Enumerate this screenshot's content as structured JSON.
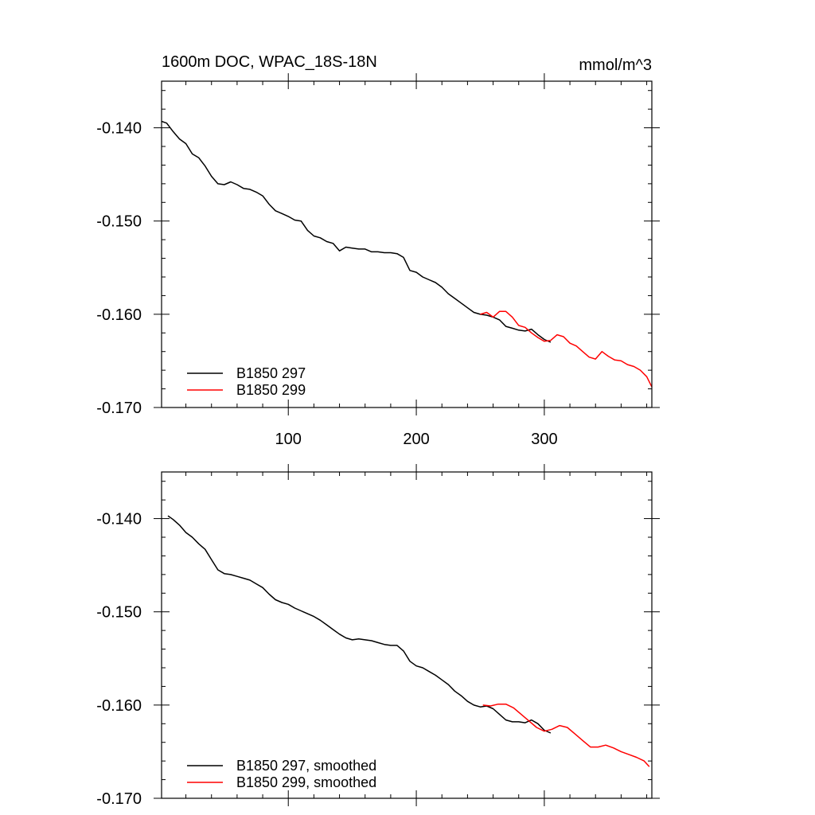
{
  "figure": {
    "title": "1600m DOC, WPAC_18S-18N",
    "units": "mmol/m^3"
  },
  "chart_data": [
    {
      "type": "line",
      "title": "1600m DOC, WPAC_18S-18N",
      "units_label": "mmol/m^3",
      "xlabel": "",
      "ylabel": "",
      "xlim": [
        1,
        384
      ],
      "ylim": [
        -0.17,
        -0.135
      ],
      "x_ticks": [
        100,
        200,
        300
      ],
      "y_ticks": [
        -0.14,
        -0.15,
        -0.16,
        -0.17
      ],
      "x_tick_labels": [
        "100",
        "200",
        "300"
      ],
      "y_tick_labels": [
        "-0.140",
        "-0.150",
        "-0.160",
        "-0.170"
      ],
      "grid": false,
      "legend_placement": "bottom-left",
      "series": [
        {
          "name": "B1850 297",
          "color": "#000000",
          "x": [
            1,
            5,
            10,
            15,
            20,
            25,
            30,
            35,
            40,
            45,
            50,
            55,
            60,
            65,
            70,
            75,
            80,
            85,
            90,
            95,
            100,
            105,
            110,
            115,
            120,
            125,
            130,
            135,
            140,
            145,
            150,
            155,
            160,
            165,
            170,
            175,
            180,
            185,
            190,
            195,
            200,
            205,
            210,
            215,
            220,
            225,
            230,
            235,
            240,
            245,
            250,
            255,
            260,
            265,
            270,
            275,
            280,
            285,
            290,
            295,
            300,
            305
          ],
          "y": [
            -0.1393,
            -0.1395,
            -0.1404,
            -0.1412,
            -0.1417,
            -0.1428,
            -0.1432,
            -0.1441,
            -0.1452,
            -0.146,
            -0.1461,
            -0.1458,
            -0.1461,
            -0.1465,
            -0.1466,
            -0.1469,
            -0.1473,
            -0.1482,
            -0.1489,
            -0.1492,
            -0.1495,
            -0.1499,
            -0.15,
            -0.151,
            -0.1516,
            -0.1518,
            -0.1522,
            -0.1524,
            -0.1532,
            -0.1528,
            -0.1529,
            -0.153,
            -0.153,
            -0.1533,
            -0.1533,
            -0.1534,
            -0.1534,
            -0.1535,
            -0.1539,
            -0.1553,
            -0.1555,
            -0.156,
            -0.1563,
            -0.1566,
            -0.1571,
            -0.1578,
            -0.1583,
            -0.1588,
            -0.1593,
            -0.1598,
            -0.16,
            -0.1601,
            -0.1603,
            -0.1606,
            -0.1613,
            -0.1615,
            -0.1617,
            -0.1618,
            -0.1616,
            -0.1622,
            -0.1627,
            -0.163
          ]
        },
        {
          "name": "B1850 299",
          "color": "#ff0000",
          "x": [
            250,
            255,
            260,
            265,
            270,
            275,
            280,
            285,
            290,
            295,
            300,
            305,
            310,
            315,
            320,
            325,
            330,
            335,
            340,
            345,
            350,
            355,
            360,
            365,
            370,
            375,
            380,
            384
          ],
          "y": [
            -0.16,
            -0.1598,
            -0.1603,
            -0.1597,
            -0.1597,
            -0.1603,
            -0.1612,
            -0.1614,
            -0.162,
            -0.1625,
            -0.1629,
            -0.1628,
            -0.1622,
            -0.1624,
            -0.1631,
            -0.1634,
            -0.164,
            -0.1646,
            -0.1648,
            -0.164,
            -0.1645,
            -0.1649,
            -0.165,
            -0.1654,
            -0.1656,
            -0.166,
            -0.1667,
            -0.1678
          ]
        }
      ]
    },
    {
      "type": "line",
      "title": "",
      "xlabel": "",
      "ylabel": "",
      "xlim": [
        1,
        384
      ],
      "ylim": [
        -0.17,
        -0.135
      ],
      "x_ticks": [
        100,
        200,
        300
      ],
      "y_ticks": [
        -0.14,
        -0.15,
        -0.16,
        -0.17
      ],
      "x_tick_labels": [],
      "y_tick_labels": [
        "-0.140",
        "-0.150",
        "-0.160",
        "-0.170"
      ],
      "grid": false,
      "legend_placement": "bottom-left",
      "series": [
        {
          "name": "B1850 297, smoothed",
          "color": "#000000",
          "x": [
            6,
            10,
            15,
            20,
            25,
            30,
            35,
            40,
            45,
            50,
            55,
            60,
            65,
            70,
            75,
            80,
            85,
            90,
            95,
            100,
            105,
            110,
            115,
            120,
            125,
            130,
            135,
            140,
            145,
            150,
            155,
            160,
            165,
            170,
            175,
            180,
            185,
            190,
            195,
            200,
            205,
            210,
            215,
            220,
            225,
            230,
            235,
            240,
            245,
            250,
            255,
            260,
            265,
            270,
            275,
            280,
            285,
            290,
            295,
            300,
            305
          ],
          "y": [
            -0.1397,
            -0.1401,
            -0.1407,
            -0.1415,
            -0.142,
            -0.1427,
            -0.1433,
            -0.1444,
            -0.1455,
            -0.1459,
            -0.146,
            -0.1462,
            -0.1464,
            -0.1466,
            -0.147,
            -0.1474,
            -0.1481,
            -0.1487,
            -0.149,
            -0.1492,
            -0.1496,
            -0.1499,
            -0.1502,
            -0.1505,
            -0.1509,
            -0.1514,
            -0.1519,
            -0.1524,
            -0.1528,
            -0.153,
            -0.1529,
            -0.153,
            -0.1531,
            -0.1533,
            -0.1535,
            -0.1536,
            -0.1536,
            -0.1542,
            -0.1553,
            -0.1558,
            -0.156,
            -0.1564,
            -0.1568,
            -0.1573,
            -0.1578,
            -0.1585,
            -0.159,
            -0.1596,
            -0.16,
            -0.1602,
            -0.1601,
            -0.1604,
            -0.161,
            -0.1616,
            -0.1618,
            -0.1618,
            -0.1619,
            -0.1616,
            -0.162,
            -0.1627,
            -0.163
          ]
        },
        {
          "name": "B1850 299, smoothed",
          "color": "#ff0000",
          "x": [
            252,
            258,
            264,
            270,
            276,
            282,
            288,
            294,
            300,
            306,
            312,
            318,
            324,
            330,
            336,
            342,
            348,
            354,
            360,
            366,
            372,
            378,
            382
          ],
          "y": [
            -0.16,
            -0.1601,
            -0.1599,
            -0.1599,
            -0.1603,
            -0.161,
            -0.1617,
            -0.1624,
            -0.1628,
            -0.1626,
            -0.1622,
            -0.1624,
            -0.1631,
            -0.1638,
            -0.1645,
            -0.1645,
            -0.1643,
            -0.1646,
            -0.165,
            -0.1653,
            -0.1656,
            -0.166,
            -0.1666
          ]
        }
      ]
    }
  ]
}
